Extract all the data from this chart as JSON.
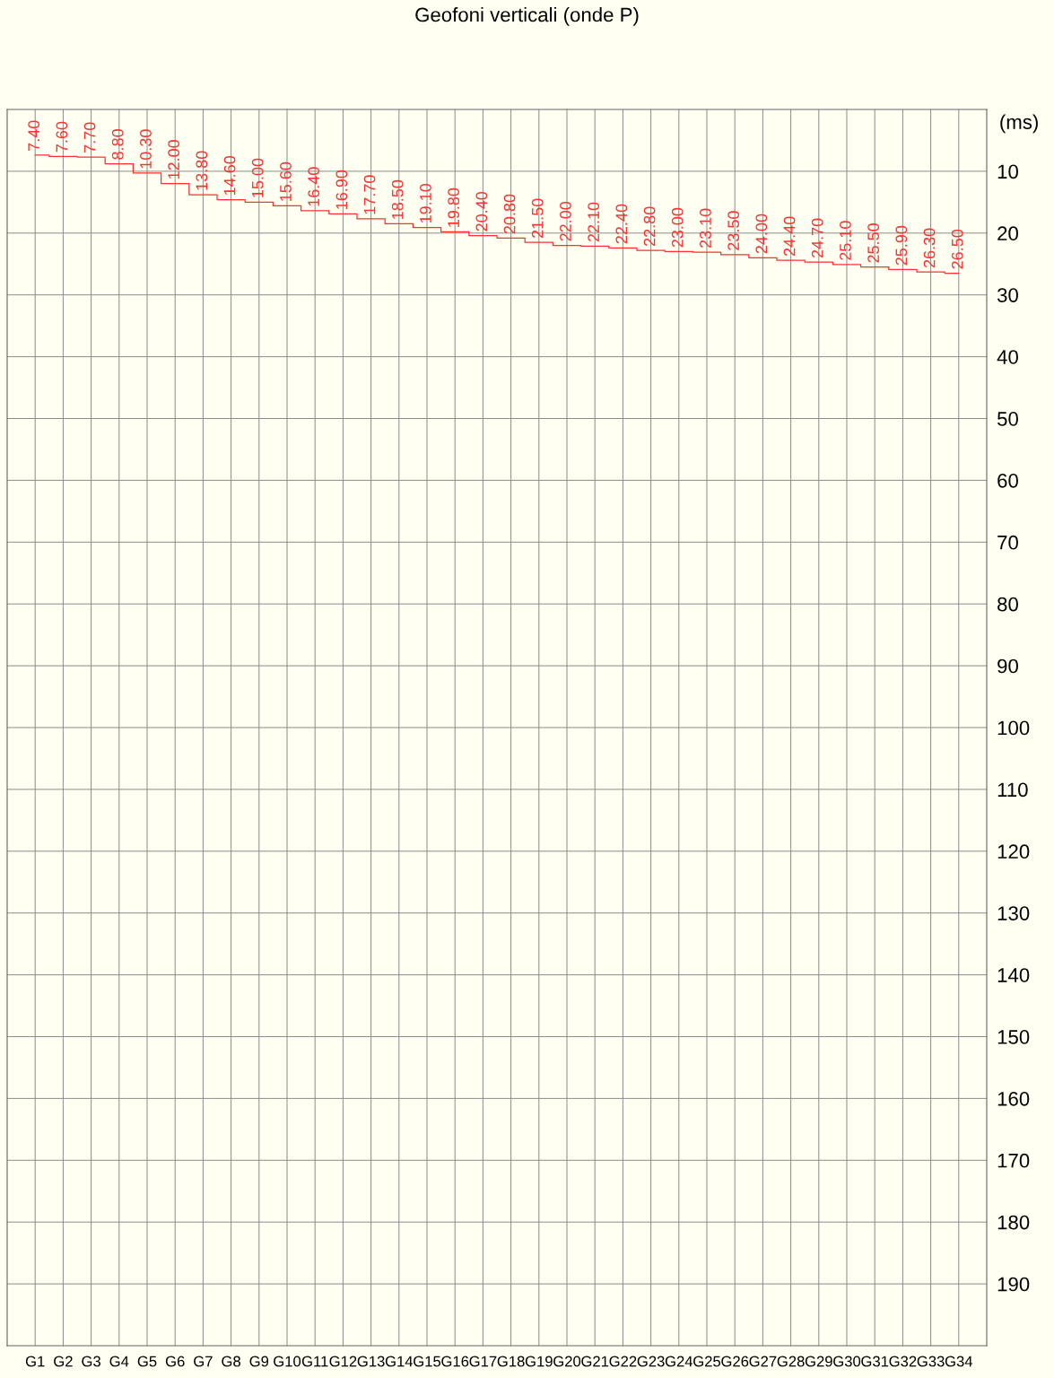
{
  "chart_data": {
    "type": "step",
    "title": "Geofoni verticali (onde P)",
    "ylabel": "(ms)",
    "categories": [
      "G1",
      "G2",
      "G3",
      "G4",
      "G5",
      "G6",
      "G7",
      "G8",
      "G9",
      "G10",
      "G11",
      "G12",
      "G13",
      "G14",
      "G15",
      "G16",
      "G17",
      "G18",
      "G19",
      "G20",
      "G21",
      "G22",
      "G23",
      "G24",
      "G25",
      "G26",
      "G27",
      "G28",
      "G29",
      "G30",
      "G31",
      "G32",
      "G33",
      "G34"
    ],
    "series": [
      {
        "color": "#ff3030",
        "values": [
          7.4,
          7.6,
          7.7,
          8.8,
          10.3,
          12.0,
          13.8,
          14.6,
          15.0,
          15.6,
          16.4,
          16.9,
          17.7,
          18.5,
          19.1,
          19.8,
          20.4,
          20.8,
          21.5,
          22.0,
          22.1,
          22.4,
          22.8,
          23.0,
          23.1,
          23.5,
          24.0,
          24.4,
          24.7,
          25.1,
          25.5,
          25.9,
          26.3,
          26.5
        ],
        "value_labels": [
          "7.40",
          "7.60",
          "7.70",
          "8.80",
          "10.30",
          "12.00",
          "13.80",
          "14.60",
          "15.00",
          "15.60",
          "16.40",
          "16.90",
          "17.70",
          "18.50",
          "19.10",
          "19.80",
          "20.40",
          "20.80",
          "21.50",
          "22.00",
          "22.10",
          "22.40",
          "22.80",
          "23.00",
          "23.10",
          "23.50",
          "24.00",
          "24.40",
          "24.70",
          "25.10",
          "25.50",
          "25.90",
          "26.30",
          "26.50"
        ]
      }
    ],
    "ylim": [
      200,
      0
    ],
    "yticks": [
      10,
      20,
      30,
      40,
      50,
      60,
      70,
      80,
      90,
      100,
      110,
      120,
      130,
      140,
      150,
      160,
      170,
      180,
      190
    ],
    "grid": true
  }
}
